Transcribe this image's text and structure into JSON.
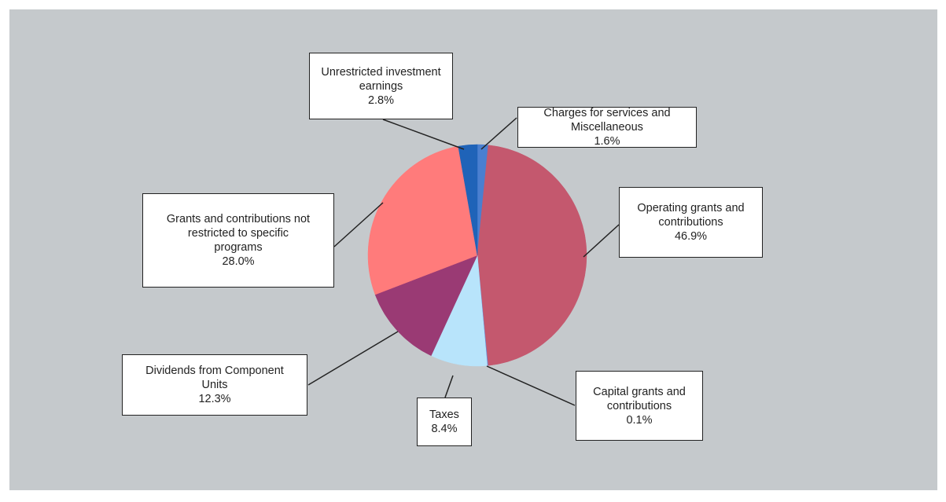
{
  "chart_data": {
    "type": "pie",
    "slices": [
      {
        "name": "Charges for services and Miscellaneous",
        "value": 1.6,
        "label_lines": [
          "Charges for services and",
          "Miscellaneous"
        ],
        "pct_text": "1.6%",
        "color": "#4a7fd0"
      },
      {
        "name": "Operating grants and contributions",
        "value": 46.9,
        "label_lines": [
          "Operating grants and",
          "contributions"
        ],
        "pct_text": "46.9%",
        "color": "#c4586e"
      },
      {
        "name": "Capital grants and contributions",
        "value": 0.1,
        "label_lines": [
          "Capital grants and",
          "contributions"
        ],
        "pct_text": "0.1%",
        "color": "#6a8fd8"
      },
      {
        "name": "Taxes",
        "value": 8.4,
        "label_lines": [
          "Taxes"
        ],
        "pct_text": "8.4%",
        "color": "#b8e4fb"
      },
      {
        "name": "Dividends from Component Units",
        "value": 12.3,
        "label_lines": [
          "Dividends from Component",
          "Units"
        ],
        "pct_text": "12.3%",
        "color": "#9a3a74"
      },
      {
        "name": "Grants and contributions not restricted to specific programs",
        "value": 28.0,
        "label_lines": [
          "Grants and contributions not",
          "restricted to specific",
          "programs"
        ],
        "pct_text": "28.0%",
        "color": "#ff7b7b"
      },
      {
        "name": "Unrestricted investment earnings",
        "value": 2.8,
        "label_lines": [
          "Unrestricted investment",
          "earnings"
        ],
        "pct_text": "2.8%",
        "color": "#1f63b8"
      }
    ],
    "legend": "none",
    "background_color": "#c5c9cc"
  }
}
